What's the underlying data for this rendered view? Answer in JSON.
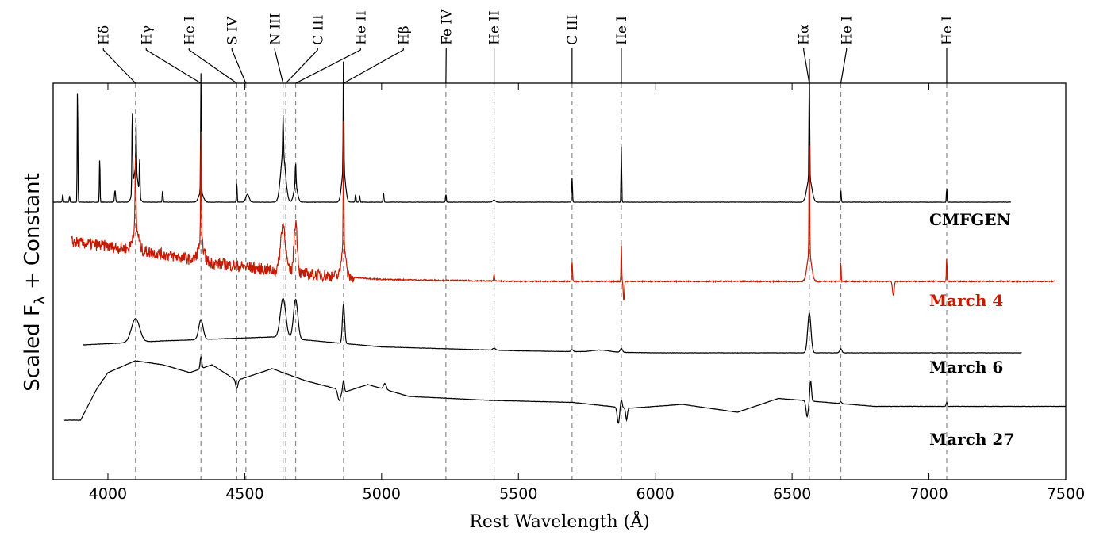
{
  "chart_data": {
    "type": "line",
    "xlabel": "Rest Wavelength (Å)",
    "ylabel": "Scaled F",
    "ylabel_subscript": "λ",
    "ylabel_suffix": " + Constant",
    "xlim": [
      3800,
      7500
    ],
    "ylim": [
      0,
      10
    ],
    "xticks": [
      4000,
      4500,
      5000,
      5500,
      6000,
      6500,
      7000,
      7500
    ],
    "xtick_labels": [
      "4000",
      "4500",
      "5000",
      "5500",
      "6000",
      "6500",
      "7000",
      "7500"
    ],
    "line_ids": [
      {
        "label": "Hδ",
        "wavelength": 4101
      },
      {
        "label": "Hγ",
        "wavelength": 4340
      },
      {
        "label": "He I",
        "wavelength": 4471
      },
      {
        "label": "S IV",
        "wavelength": 4504
      },
      {
        "label": "N III",
        "wavelength": 4640
      },
      {
        "label": "C III",
        "wavelength": 4650
      },
      {
        "label": "He II",
        "wavelength": 4686
      },
      {
        "label": "Hβ",
        "wavelength": 4861
      },
      {
        "label": "Fe IV",
        "wavelength": 5235
      },
      {
        "label": "He II",
        "wavelength": 5411
      },
      {
        "label": "C III",
        "wavelength": 5696
      },
      {
        "label": "He I",
        "wavelength": 5876
      },
      {
        "label": "Hα",
        "wavelength": 6563
      },
      {
        "label": "He I",
        "wavelength": 6678
      },
      {
        "label": "He I",
        "wavelength": 7065
      }
    ],
    "series": [
      {
        "name": "CMFGEN",
        "color": "#000000",
        "label_color": "#000000",
        "offset": 7.0,
        "range": [
          3800,
          7300
        ],
        "continuum": [
          [
            3800,
            0.0
          ],
          [
            7300,
            0.0
          ]
        ],
        "lines": [
          {
            "w": 3889,
            "a": 3.0,
            "s": 1.2
          },
          {
            "w": 3835,
            "a": 0.2,
            "s": 1.5
          },
          {
            "w": 3860,
            "a": 0.15,
            "s": 1.5
          },
          {
            "w": 3970,
            "a": 1.15,
            "s": 1.2
          },
          {
            "w": 4026,
            "a": 0.3,
            "s": 2.0
          },
          {
            "w": 4089,
            "a": 2.0,
            "s": 1.4
          },
          {
            "w": 4101,
            "a": 0.8,
            "s": 9.0
          },
          {
            "w": 4103,
            "a": 1.2,
            "s": 1.2
          },
          {
            "w": 4116,
            "a": 1.0,
            "s": 1.2
          },
          {
            "w": 4200,
            "a": 0.3,
            "s": 1.5
          },
          {
            "w": 4340,
            "a": 3.0,
            "s": 1.2
          },
          {
            "w": 4340,
            "a": 0.25,
            "s": 8.0
          },
          {
            "w": 4471,
            "a": 0.5,
            "s": 1.3
          },
          {
            "w": 4510,
            "a": 0.2,
            "s": 6.0
          },
          {
            "w": 4640,
            "a": 1.2,
            "s": 9.0
          },
          {
            "w": 4640,
            "a": 1.0,
            "s": 1.5
          },
          {
            "w": 4686,
            "a": 0.4,
            "s": 7.0
          },
          {
            "w": 4686,
            "a": 0.6,
            "s": 1.5
          },
          {
            "w": 4861,
            "a": 3.0,
            "s": 1.2
          },
          {
            "w": 4861,
            "a": 0.8,
            "s": 7.0
          },
          {
            "w": 4905,
            "a": 0.2,
            "s": 1.5
          },
          {
            "w": 4920,
            "a": 0.15,
            "s": 1.5
          },
          {
            "w": 5007,
            "a": 0.25,
            "s": 1.5
          },
          {
            "w": 5235,
            "a": 0.2,
            "s": 1.5
          },
          {
            "w": 5411,
            "a": 0.05,
            "s": 5.0
          },
          {
            "w": 5696,
            "a": 0.6,
            "s": 1.5
          },
          {
            "w": 5876,
            "a": 1.4,
            "s": 1.2
          },
          {
            "w": 6563,
            "a": 3.0,
            "s": 1.2
          },
          {
            "w": 6563,
            "a": 0.6,
            "s": 9.0
          },
          {
            "w": 6678,
            "a": 0.3,
            "s": 1.5
          },
          {
            "w": 7065,
            "a": 0.35,
            "s": 1.2
          }
        ]
      },
      {
        "name": "March 4",
        "color": "#c41a00",
        "label_color": "#c41a00",
        "offset": 5.0,
        "range": [
          3865,
          7460
        ],
        "continuum": [
          [
            3865,
            1.0
          ],
          [
            4100,
            0.8
          ],
          [
            4400,
            0.45
          ],
          [
            4700,
            0.2
          ],
          [
            5000,
            0.05
          ],
          [
            5500,
            0.0
          ],
          [
            7460,
            0.0
          ]
        ],
        "noisy_below": 4900,
        "noise_amp": 0.15,
        "lines": [
          {
            "w": 4101,
            "a": 1.8,
            "s": 1.5
          },
          {
            "w": 4101,
            "a": 0.6,
            "s": 10.0
          },
          {
            "w": 4340,
            "a": 3.0,
            "s": 1.2
          },
          {
            "w": 4340,
            "a": 0.5,
            "s": 10.0
          },
          {
            "w": 4640,
            "a": 1.2,
            "s": 9.0
          },
          {
            "w": 4686,
            "a": 1.3,
            "s": 6.0
          },
          {
            "w": 4861,
            "a": 3.0,
            "s": 1.2
          },
          {
            "w": 4861,
            "a": 0.9,
            "s": 7.0
          },
          {
            "w": 5411,
            "a": 0.2,
            "s": 1.5
          },
          {
            "w": 5696,
            "a": 0.5,
            "s": 1.5
          },
          {
            "w": 5876,
            "a": 1.0,
            "s": 1.2
          },
          {
            "w": 5885,
            "a": -0.5,
            "s": 2.0
          },
          {
            "w": 6563,
            "a": 3.0,
            "s": 1.2
          },
          {
            "w": 6563,
            "a": 0.7,
            "s": 8.0
          },
          {
            "w": 6678,
            "a": 0.5,
            "s": 1.2
          },
          {
            "w": 6870,
            "a": -0.35,
            "s": 3.0
          },
          {
            "w": 7065,
            "a": 0.6,
            "s": 1.2
          }
        ]
      },
      {
        "name": "March 6",
        "color": "#000000",
        "label_color": "#000000",
        "offset": 3.2,
        "range": [
          3910,
          7340
        ],
        "continuum": [
          [
            3910,
            0.2
          ],
          [
            4200,
            0.3
          ],
          [
            4600,
            0.4
          ],
          [
            5000,
            0.15
          ],
          [
            5500,
            0.05
          ],
          [
            6000,
            0.0
          ],
          [
            7340,
            0.0
          ]
        ],
        "lines": [
          {
            "w": 4101,
            "a": 0.6,
            "s": 15.0
          },
          {
            "w": 4340,
            "a": 0.5,
            "s": 8.0
          },
          {
            "w": 4640,
            "a": 1.0,
            "s": 10.0
          },
          {
            "w": 4686,
            "a": 1.0,
            "s": 8.0
          },
          {
            "w": 4861,
            "a": 1.0,
            "s": 4.0
          },
          {
            "w": 5411,
            "a": 0.05,
            "s": 5.0
          },
          {
            "w": 5696,
            "a": 0.05,
            "s": 4.0
          },
          {
            "w": 5800,
            "a": 0.05,
            "s": 30.0
          },
          {
            "w": 5876,
            "a": 0.1,
            "s": 4.0
          },
          {
            "w": 6563,
            "a": 1.0,
            "s": 6.0
          },
          {
            "w": 6678,
            "a": 0.1,
            "s": 4.0
          }
        ]
      },
      {
        "name": "March 27",
        "color": "#000000",
        "label_color": "#000000",
        "offset": 1.5,
        "range": [
          3840,
          7500
        ],
        "continuum": [
          [
            3840,
            0.0
          ],
          [
            3900,
            0.0
          ],
          [
            3960,
            0.8
          ],
          [
            4000,
            1.2
          ],
          [
            4100,
            1.5
          ],
          [
            4200,
            1.4
          ],
          [
            4300,
            1.2
          ],
          [
            4380,
            1.4
          ],
          [
            4470,
            1.0
          ],
          [
            4600,
            1.3
          ],
          [
            4720,
            1.0
          ],
          [
            4830,
            0.8
          ],
          [
            4860,
            0.7
          ],
          [
            4950,
            0.9
          ],
          [
            5100,
            0.6
          ],
          [
            5400,
            0.5
          ],
          [
            5700,
            0.45
          ],
          [
            5900,
            0.3
          ],
          [
            6100,
            0.4
          ],
          [
            6300,
            0.2
          ],
          [
            6450,
            0.55
          ],
          [
            6540,
            0.5
          ],
          [
            6800,
            0.35
          ],
          [
            7500,
            0.35
          ]
        ],
        "lines": [
          {
            "w": 4340,
            "a": 0.3,
            "s": 3.0
          },
          {
            "w": 4471,
            "a": -0.2,
            "s": 4.0
          },
          {
            "w": 4861,
            "a": 0.3,
            "s": 3.0
          },
          {
            "w": 4845,
            "a": -0.25,
            "s": 5.0
          },
          {
            "w": 5012,
            "a": 0.15,
            "s": 5.0
          },
          {
            "w": 5865,
            "a": -0.4,
            "s": 4.0
          },
          {
            "w": 5876,
            "a": 0.2,
            "s": 3.0
          },
          {
            "w": 5895,
            "a": -0.3,
            "s": 3.0
          },
          {
            "w": 6555,
            "a": -0.4,
            "s": 4.0
          },
          {
            "w": 6568,
            "a": 0.5,
            "s": 3.0
          },
          {
            "w": 6678,
            "a": 0.05,
            "s": 3.0
          },
          {
            "w": 7065,
            "a": 0.1,
            "s": 2.0
          }
        ]
      }
    ]
  }
}
